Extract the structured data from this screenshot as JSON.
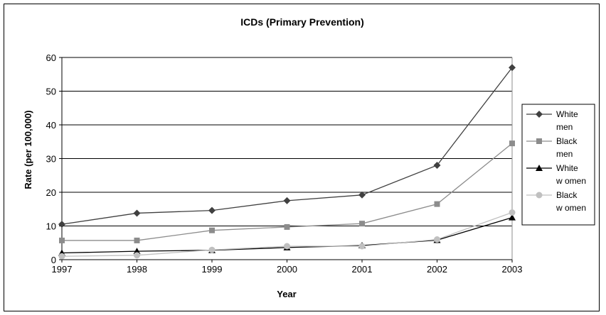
{
  "chart_data": {
    "type": "line",
    "title": "ICDs (Primary Prevention)",
    "xlabel": "Year",
    "ylabel": "Rate (per 100,000)",
    "categories": [
      "1997",
      "1998",
      "1999",
      "2000",
      "2001",
      "2002",
      "2003"
    ],
    "ylim": [
      0,
      60
    ],
    "yticks": [
      0,
      10,
      20,
      30,
      40,
      50,
      60
    ],
    "grid": true,
    "legend_position": "right",
    "series": [
      {
        "name": "White men",
        "legend_lines": [
          "White",
          "men"
        ],
        "marker": "diamond",
        "color": "#404040",
        "values": [
          10.5,
          13.8,
          14.6,
          17.5,
          19.2,
          28.0,
          57.0
        ]
      },
      {
        "name": "Black men",
        "legend_lines": [
          "Black",
          "men"
        ],
        "marker": "square",
        "color": "#8c8c8c",
        "values": [
          5.7,
          5.7,
          8.7,
          9.7,
          10.7,
          16.5,
          34.5
        ]
      },
      {
        "name": "White women",
        "legend_lines": [
          "White",
          "w omen"
        ],
        "marker": "triangle",
        "color": "#000000",
        "values": [
          2.0,
          2.5,
          2.8,
          3.6,
          4.2,
          5.8,
          12.5
        ]
      },
      {
        "name": "Black women",
        "legend_lines": [
          "Black",
          "w omen"
        ],
        "marker": "circle",
        "color": "#c0c0c0",
        "values": [
          1.0,
          1.3,
          2.9,
          4.0,
          4.0,
          6.0,
          14.0
        ]
      }
    ]
  }
}
